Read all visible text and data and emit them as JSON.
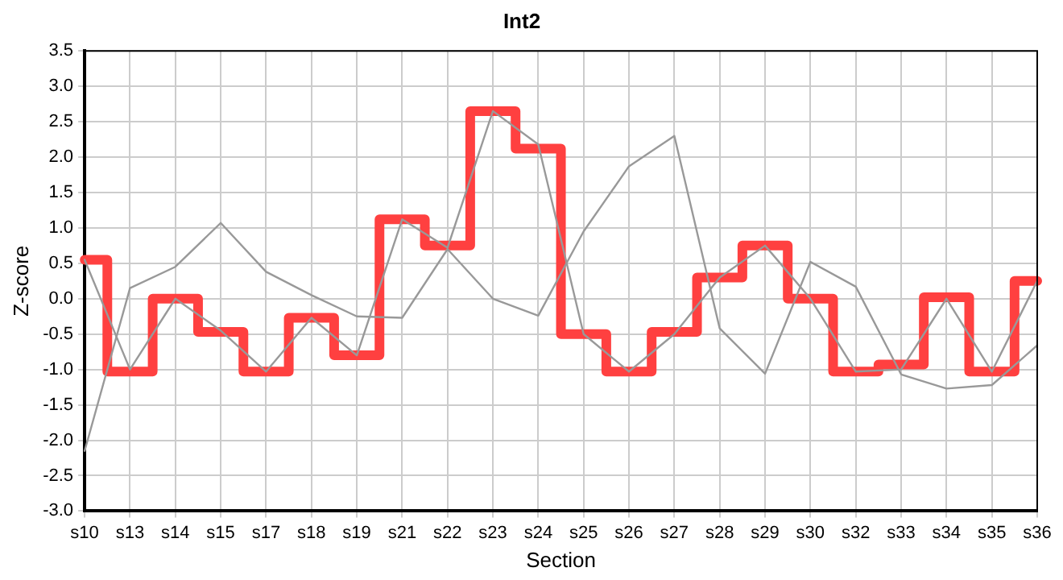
{
  "chart_data": {
    "type": "line",
    "title": "Int2",
    "xlabel": "Section",
    "ylabel": "Z-score",
    "categories": [
      "s10",
      "s13",
      "s14",
      "s15",
      "s17",
      "s18",
      "s19",
      "s21",
      "s22",
      "s23",
      "s24",
      "s25",
      "s26",
      "s27",
      "s28",
      "s29",
      "s30",
      "s32",
      "s33",
      "s34",
      "s35",
      "s36"
    ],
    "series": [
      {
        "color": "#999999",
        "values": [
          -2.15,
          0.15,
          0.45,
          1.07,
          0.38,
          0.05,
          -0.25,
          -0.27,
          0.7,
          0.0,
          -0.24,
          0.95,
          1.87,
          2.3,
          -0.42,
          -1.06,
          0.52,
          0.17,
          -1.07,
          -1.27,
          -1.22,
          -0.66
        ]
      },
      {
        "color": "#999999",
        "values": [
          0.55,
          -1.0,
          0.0,
          -0.45,
          -1.03,
          -0.27,
          -0.8,
          1.12,
          0.72,
          2.65,
          2.18,
          -0.5,
          -1.03,
          -0.5,
          0.3,
          0.75,
          0.0,
          -1.03,
          -1.0,
          0.0,
          -1.03,
          0.25
        ]
      },
      {
        "type": "step",
        "color": "#ff4040",
        "values": [
          0.55,
          -1.03,
          0.0,
          -0.47,
          -1.03,
          -0.27,
          -0.8,
          1.12,
          0.75,
          2.65,
          2.12,
          -0.5,
          -1.03,
          -0.47,
          0.3,
          0.75,
          0.0,
          -1.03,
          -0.93,
          0.02,
          -1.03,
          0.25
        ]
      }
    ],
    "ylim": [
      -3,
      3.5
    ],
    "yticks": [
      {
        "value": -3,
        "label": "-3.0"
      },
      {
        "value": -2.5,
        "label": "-2.5"
      },
      {
        "value": -2,
        "label": "-2.0"
      },
      {
        "value": -1.5,
        "label": "-1.5"
      },
      {
        "value": -1,
        "label": "-1.0"
      },
      {
        "value": -0.5,
        "label": "-0.5"
      },
      {
        "value": 0,
        "label": "0.0"
      },
      {
        "value": 0.5,
        "label": "0.5"
      },
      {
        "value": 1,
        "label": "1.0"
      },
      {
        "value": 1.5,
        "label": "1.5"
      },
      {
        "value": 2,
        "label": "2.0"
      },
      {
        "value": 2.5,
        "label": "2.5"
      },
      {
        "value": 3,
        "label": "3.0"
      },
      {
        "value": 3.5,
        "label": "3.5"
      }
    ],
    "grid": true,
    "legend": false,
    "marker": "none",
    "line_style": "solid"
  }
}
